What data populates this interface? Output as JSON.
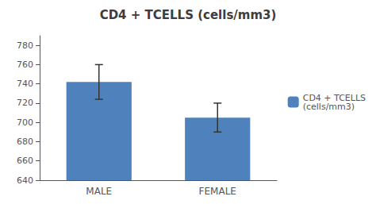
{
  "chart_data": {
    "type": "bar",
    "title": "CD4 + TCELLS (cells/mm3)",
    "categories": [
      "MALE",
      "FEMALE"
    ],
    "series": [
      {
        "name": "CD4 + TCELLS\n(cells/mm3)",
        "color": "#4F81BD",
        "values": [
          742,
          705
        ],
        "errors": [
          18,
          15
        ]
      }
    ],
    "ylim": [
      640,
      790
    ],
    "yticks": [
      640,
      660,
      680,
      700,
      720,
      740,
      760,
      780
    ],
    "grid": false,
    "legend": "right"
  }
}
